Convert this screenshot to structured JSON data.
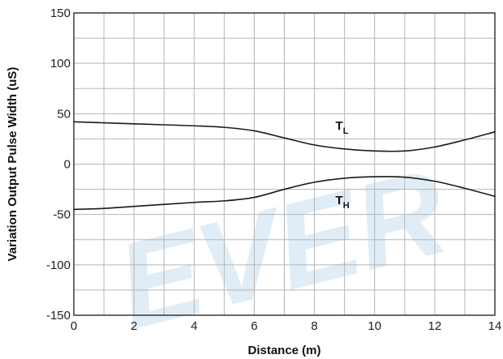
{
  "chart_data": {
    "type": "line",
    "title": "",
    "xlabel": "Distance (m)",
    "ylabel": "Variation Output Pulse Width (uS)",
    "xlim": [
      0,
      14
    ],
    "ylim": [
      -150,
      150
    ],
    "x_ticks": [
      0,
      2,
      4,
      6,
      8,
      10,
      12,
      14
    ],
    "y_ticks": [
      150,
      100,
      50,
      0,
      -50,
      -100,
      -150
    ],
    "x_grid_step": 1,
    "y_grid_step": 25,
    "grid": true,
    "series": [
      {
        "name": "TL",
        "label_main": "T",
        "label_sub": "L",
        "x": [
          0,
          1,
          2,
          3,
          4,
          5,
          6,
          7,
          8,
          9,
          10,
          11,
          12,
          13,
          14
        ],
        "y": [
          42,
          41,
          40,
          39,
          38,
          36.5,
          33,
          26,
          19,
          15,
          13,
          13,
          17,
          24,
          32
        ]
      },
      {
        "name": "TH",
        "label_main": "T",
        "label_sub": "H",
        "x": [
          0,
          1,
          2,
          3,
          4,
          5,
          6,
          7,
          8,
          9,
          10,
          11,
          12,
          13,
          14
        ],
        "y": [
          -45,
          -44,
          -42,
          -40,
          -38,
          -36.5,
          -33,
          -25,
          -18,
          -14,
          -12.5,
          -13,
          -17,
          -24,
          -32
        ]
      }
    ],
    "annotations": [
      {
        "series": "TL",
        "x": 8.7,
        "y": 34
      },
      {
        "series": "TH",
        "x": 8.7,
        "y": -40
      }
    ],
    "watermark": "EVER",
    "colors": {
      "line": "#1a1a1a",
      "grid": "#b5b5b5",
      "frame": "#2a2a2a",
      "watermark": "#dceaf5"
    }
  }
}
